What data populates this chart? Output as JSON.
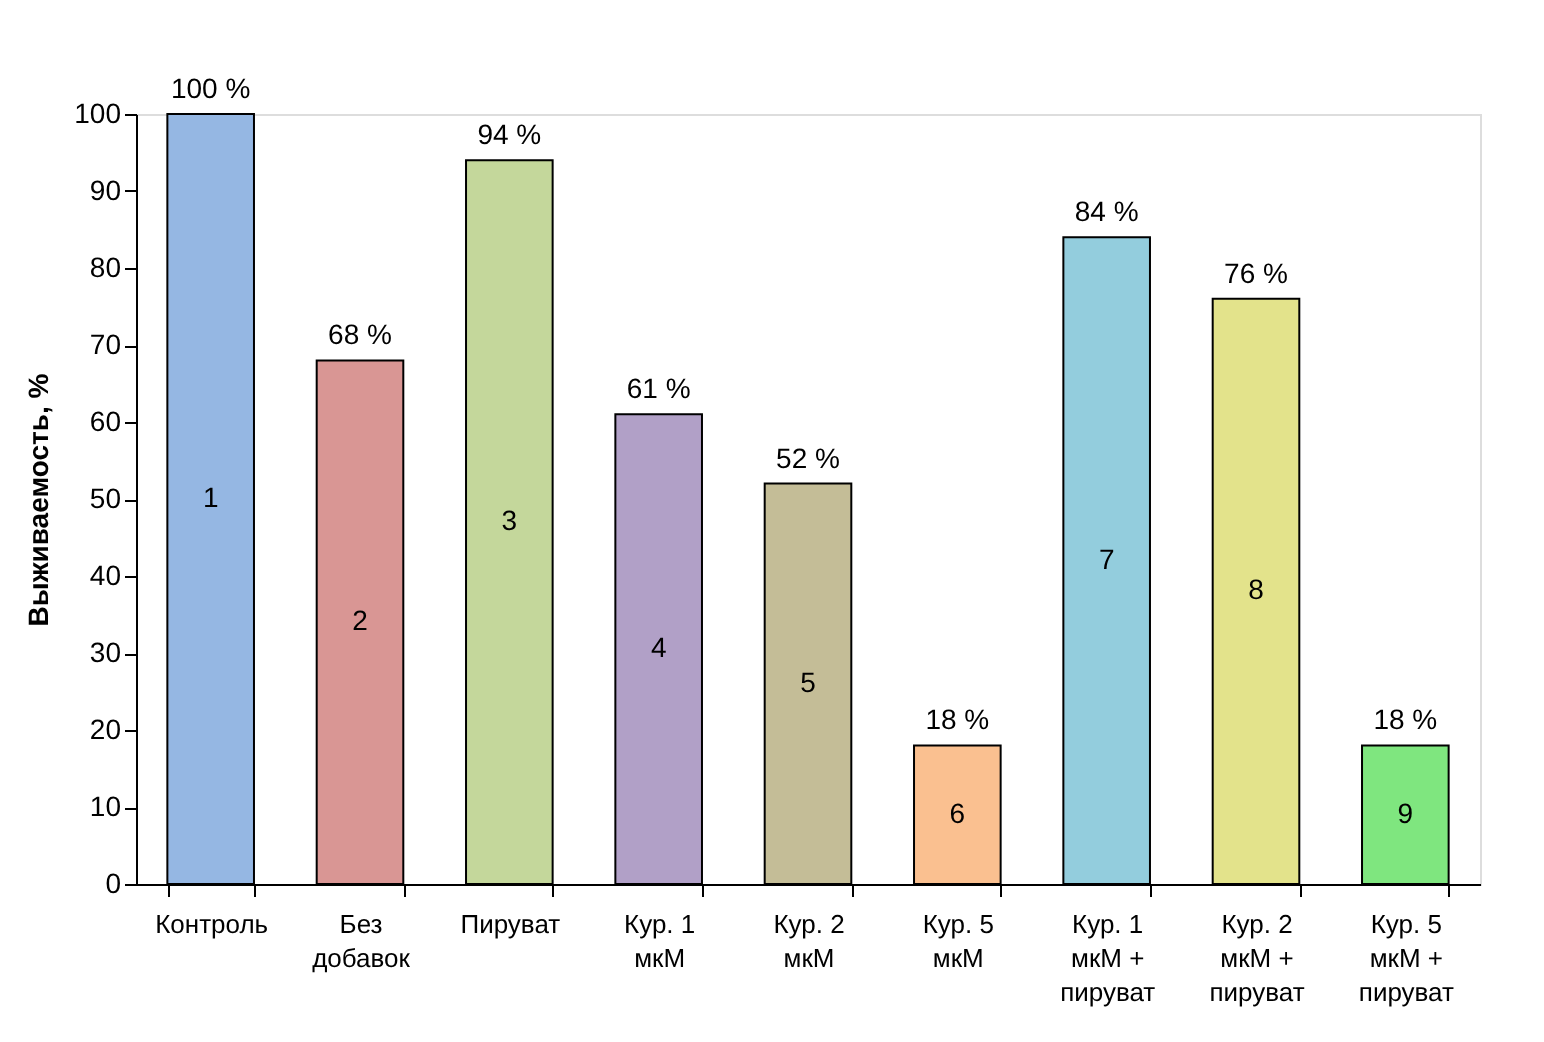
{
  "chart_data": {
    "type": "bar",
    "ylabel": "Выживаемость, %",
    "categories": [
      "Контроль",
      "Без\nдобавок",
      "Пируват",
      "Кур. 1\nмкМ",
      "Кур. 2\nмкМ",
      "Кур. 5\nмкМ",
      "Кур. 1\nмкМ +\nпируват",
      "Кур. 2\nмкМ +\nпируват",
      "Кур. 5\nмкМ +\nпируват"
    ],
    "values": [
      100,
      68,
      94,
      61,
      52,
      18,
      84,
      76,
      18
    ],
    "value_labels": [
      "100 %",
      "68 %",
      "94 %",
      "61 %",
      "52 %",
      "18 %",
      "84 %",
      "76 %",
      "18 %"
    ],
    "colors": [
      "#95b7e3",
      "#d99694",
      "#c4d79b",
      "#b1a0c7",
      "#c4bd97",
      "#fac090",
      "#93cddd",
      "#e3e38b",
      "#7fe67f"
    ],
    "annotations": [
      "1",
      "2",
      "3",
      "4",
      "5",
      "6",
      "7",
      "8",
      "9"
    ],
    "ylim": [
      0,
      100
    ],
    "yticks": [
      0,
      10,
      20,
      30,
      40,
      50,
      60,
      70,
      80,
      90,
      100
    ],
    "grid": false
  }
}
